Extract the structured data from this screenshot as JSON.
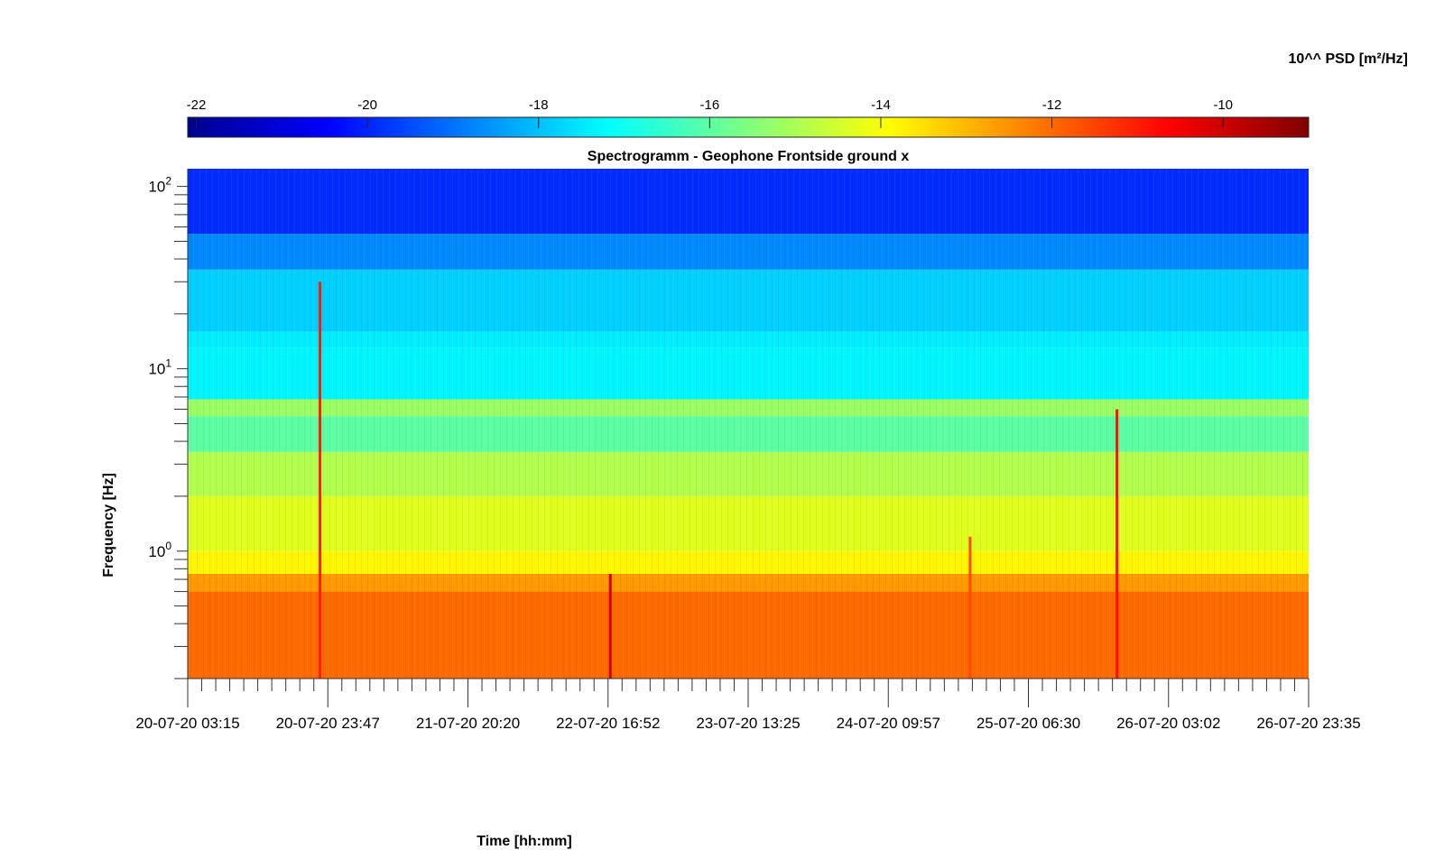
{
  "chart_data": {
    "type": "heatmap",
    "title": "Spectrogramm - Geophone Frontside ground x",
    "xlabel": "Time [hh:mm]",
    "ylabel": "Frequency [Hz]",
    "colorbar": {
      "label": "10^^ PSD [m²/Hz]",
      "range": [
        -22.1,
        -9.0
      ],
      "ticks": [
        "-22",
        "-20",
        "-18",
        "-16",
        "-14",
        "-12",
        "-10"
      ],
      "tick_values": [
        -22,
        -20,
        -18,
        -16,
        -14,
        -12,
        -10
      ],
      "colormap": "jet"
    },
    "x_ticks": [
      "20-07-20 03:15",
      "20-07-20 23:47",
      "21-07-20 20:20",
      "22-07-20 16:52",
      "23-07-20 13:25",
      "24-07-20 09:57",
      "25-07-20 06:30",
      "26-07-20 03:02",
      "26-07-20 23:35"
    ],
    "y_scale": "log",
    "y_range": [
      0.2,
      125
    ],
    "y_ticks": [
      {
        "base": "10",
        "exp": "0",
        "value": 1
      },
      {
        "base": "10",
        "exp": "1",
        "value": 10
      },
      {
        "base": "10",
        "exp": "2",
        "value": 100
      }
    ],
    "frequency_bands": [
      {
        "f_low": 0.2,
        "f_high": 0.6,
        "log10_psd": -12.0
      },
      {
        "f_low": 0.6,
        "f_high": 0.75,
        "log10_psd": -12.6
      },
      {
        "f_low": 0.75,
        "f_high": 1.0,
        "log10_psd": -13.8
      },
      {
        "f_low": 1.0,
        "f_high": 2.0,
        "log10_psd": -14.3
      },
      {
        "f_low": 2.0,
        "f_high": 3.5,
        "log10_psd": -14.9
      },
      {
        "f_low": 3.5,
        "f_high": 5.5,
        "log10_psd": -16.0
      },
      {
        "f_low": 5.5,
        "f_high": 6.8,
        "log10_psd": -15.2
      },
      {
        "f_low": 6.8,
        "f_high": 13,
        "log10_psd": -17.3
      },
      {
        "f_low": 13,
        "f_high": 16,
        "log10_psd": -17.4
      },
      {
        "f_low": 16,
        "f_high": 35,
        "log10_psd": -17.8
      },
      {
        "f_low": 35,
        "f_high": 55,
        "log10_psd": -18.7
      },
      {
        "f_low": 55,
        "f_high": 125,
        "log10_psd": -19.9
      }
    ],
    "events": [
      {
        "time_fraction": 0.118,
        "f_top": 30,
        "log10_psd": -11.0
      },
      {
        "time_fraction": 0.377,
        "f_top": 0.75,
        "log10_psd": -10.0
      },
      {
        "time_fraction": 0.698,
        "f_top": 1.2,
        "log10_psd": -11.6
      },
      {
        "time_fraction": 0.829,
        "f_top": 6,
        "log10_psd": -10.8
      }
    ]
  }
}
